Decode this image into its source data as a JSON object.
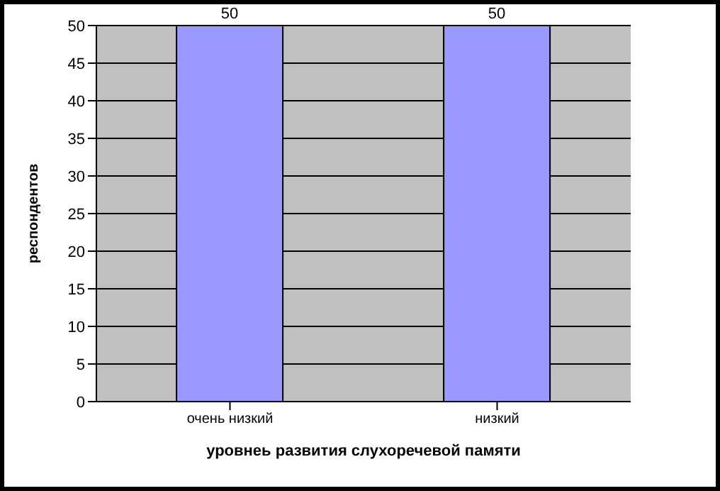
{
  "chart_data": {
    "type": "bar",
    "xlabel": "уровнеь развития слухоречевой памяти",
    "ylabel": "респондентов",
    "categories": [
      "очень низкий",
      "низкий"
    ],
    "values": [
      50,
      50
    ],
    "color": "#9999ff",
    "ylim": [
      0,
      50
    ],
    "yticks": [
      0,
      5,
      10,
      15,
      20,
      25,
      30,
      35,
      40,
      45,
      50
    ],
    "grid": "y",
    "data_labels": true
  }
}
